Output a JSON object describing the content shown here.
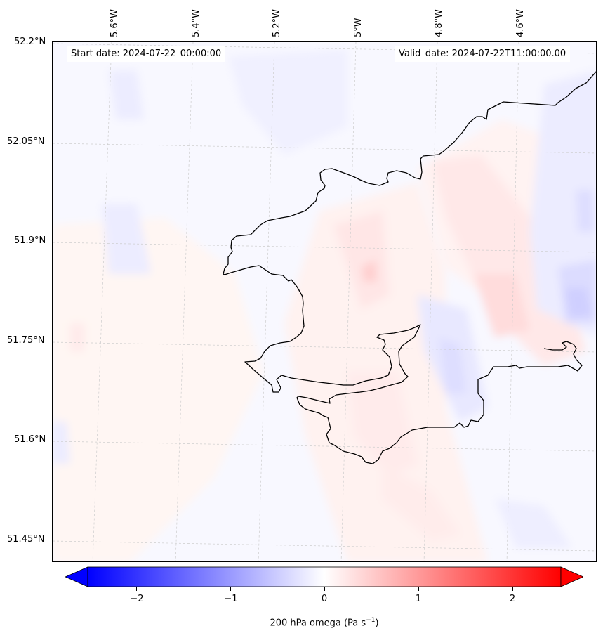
{
  "map": {
    "start_date_label": "Start date: 2024-07-22_00:00:00",
    "valid_date_label": "Valid_date: 2024-07-22T11:00:00.00",
    "longitude_labels": [
      "5.6°W",
      "5.4°W",
      "5.2°W",
      "5°W",
      "4.8°W",
      "4.6°W"
    ],
    "latitude_labels": [
      "52.2°N",
      "52.05°N",
      "51.9°N",
      "51.75°N",
      "51.6°N",
      "51.45°N"
    ],
    "variable": "200 hPa omega",
    "units": "Pa s",
    "units_exponent": "−1"
  },
  "colorbar": {
    "ticks": [
      "−2",
      "−1",
      "0",
      "1",
      "2"
    ],
    "range": [
      -2.5,
      2.5
    ],
    "colormap": "bwr",
    "min_color": "#0000ff",
    "mid_color": "#ffffff",
    "max_color": "#ff0000",
    "extend": "both"
  },
  "colors": {
    "coastline": "#000000",
    "gridline": "#cccccc"
  }
}
